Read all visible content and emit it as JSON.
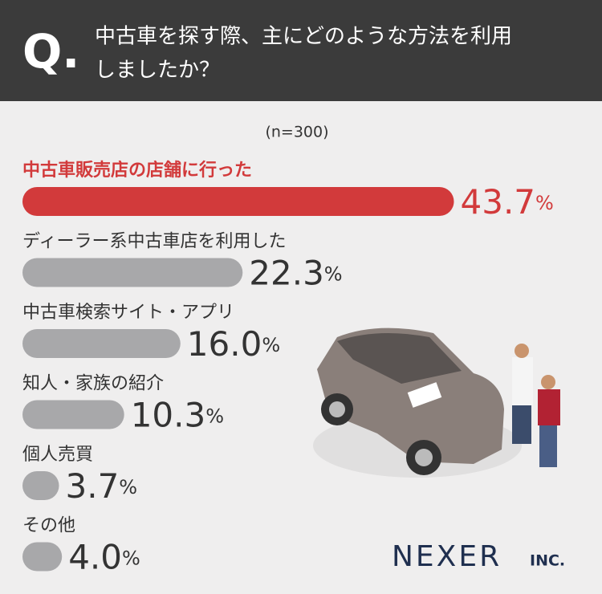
{
  "chart_data": {
    "type": "bar",
    "title_mark": "Q.",
    "title": [
      "中古車を探す際、主にどのような方法を利用",
      "しましたか？"
    ],
    "note": "(n=300)",
    "categories": [
      "中古車販売店の店舗に行った",
      "ディーラー系中古車店を利用した",
      "中古車検索サイト・アプリ",
      "知人・家族の紹介",
      "個人売買",
      "その他"
    ],
    "values": [
      43.7,
      22.3,
      16.0,
      10.3,
      3.7,
      4.0
    ],
    "value_labels": [
      "43.7",
      "22.3",
      "16.0",
      "10.3",
      "3.7",
      "4.0"
    ],
    "value_unit": "%",
    "colors": [
      "#d23a3b",
      "#a8a8aa",
      "#a8a8aa",
      "#a8a8aa",
      "#a8a8aa",
      "#a8a8aa"
    ],
    "brand": "NEXER",
    "brand_suffix": "INC."
  }
}
